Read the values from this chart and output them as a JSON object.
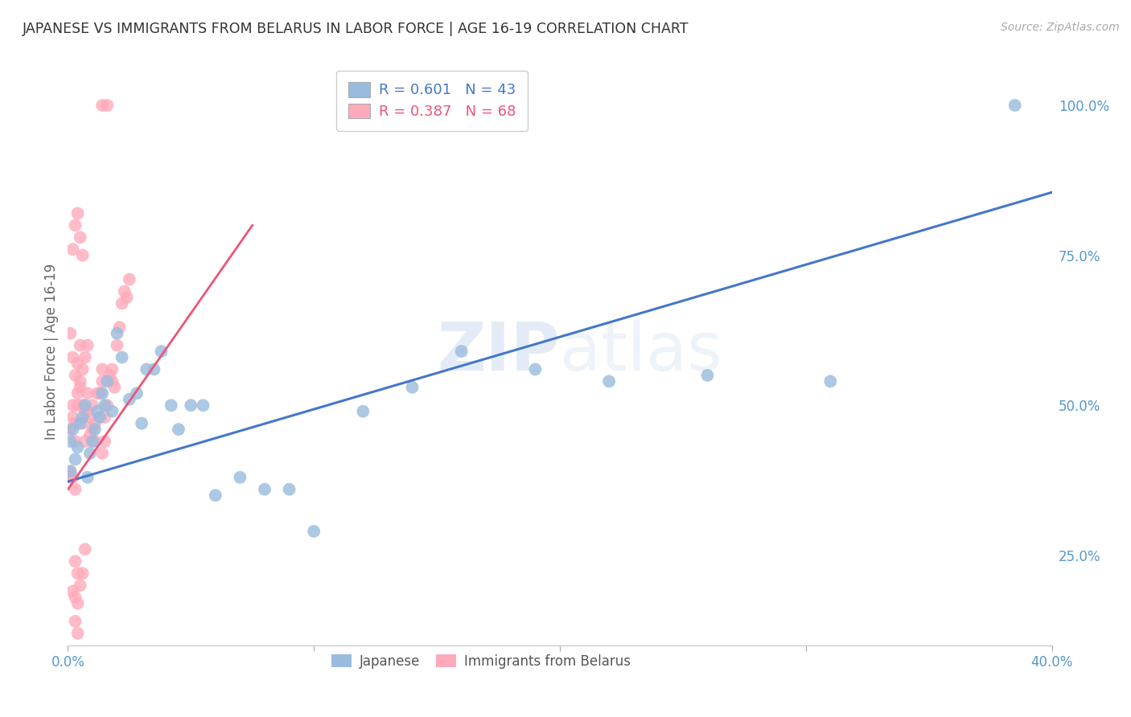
{
  "title": "JAPANESE VS IMMIGRANTS FROM BELARUS IN LABOR FORCE | AGE 16-19 CORRELATION CHART",
  "source": "Source: ZipAtlas.com",
  "ylabel": "In Labor Force | Age 16-19",
  "xlim": [
    0.0,
    0.4
  ],
  "ylim": [
    0.1,
    1.08
  ],
  "xtick_vals": [
    0.0,
    0.1,
    0.2,
    0.3,
    0.4
  ],
  "xtick_labels": [
    "0.0%",
    "",
    "",
    "",
    "40.0%"
  ],
  "ytick_vals": [
    0.25,
    0.5,
    0.75,
    1.0
  ],
  "ytick_labels": [
    "25.0%",
    "50.0%",
    "75.0%",
    "100.0%"
  ],
  "watermark_zip": "ZIP",
  "watermark_atlas": "atlas",
  "legend_blue_r": "R = 0.601",
  "legend_blue_n": "N = 43",
  "legend_pink_r": "R = 0.387",
  "legend_pink_n": "N = 68",
  "blue_color": "#99BBDD",
  "pink_color": "#FFAABB",
  "blue_line_color": "#4477CC",
  "pink_line_color": "#EE5577",
  "tick_color": "#5599CC",
  "grid_color": "#CCCCCC",
  "japanese_x": [
    0.001,
    0.001,
    0.002,
    0.003,
    0.004,
    0.005,
    0.006,
    0.007,
    0.008,
    0.009,
    0.01,
    0.011,
    0.012,
    0.013,
    0.014,
    0.015,
    0.016,
    0.018,
    0.02,
    0.022,
    0.025,
    0.028,
    0.03,
    0.032,
    0.035,
    0.038,
    0.042,
    0.045,
    0.05,
    0.055,
    0.06,
    0.07,
    0.08,
    0.09,
    0.1,
    0.12,
    0.14,
    0.16,
    0.19,
    0.22,
    0.26,
    0.31,
    0.385
  ],
  "japanese_y": [
    0.39,
    0.44,
    0.46,
    0.41,
    0.43,
    0.47,
    0.48,
    0.5,
    0.38,
    0.42,
    0.44,
    0.46,
    0.49,
    0.48,
    0.52,
    0.5,
    0.54,
    0.49,
    0.62,
    0.58,
    0.51,
    0.52,
    0.47,
    0.56,
    0.56,
    0.59,
    0.5,
    0.46,
    0.5,
    0.5,
    0.35,
    0.38,
    0.36,
    0.36,
    0.29,
    0.49,
    0.53,
    0.59,
    0.56,
    0.54,
    0.55,
    0.54,
    1.0
  ],
  "belarus_x": [
    0.001,
    0.001,
    0.002,
    0.002,
    0.003,
    0.003,
    0.004,
    0.004,
    0.005,
    0.005,
    0.006,
    0.006,
    0.007,
    0.007,
    0.008,
    0.008,
    0.009,
    0.009,
    0.01,
    0.01,
    0.011,
    0.011,
    0.012,
    0.013,
    0.014,
    0.014,
    0.015,
    0.016,
    0.017,
    0.018,
    0.018,
    0.019,
    0.02,
    0.021,
    0.022,
    0.023,
    0.024,
    0.025,
    0.014,
    0.015,
    0.003,
    0.004,
    0.005,
    0.006,
    0.007,
    0.002,
    0.003,
    0.004,
    0.002,
    0.003,
    0.004,
    0.005,
    0.006,
    0.001,
    0.002,
    0.003,
    0.004,
    0.005,
    0.006,
    0.007,
    0.008,
    0.003,
    0.004,
    0.003,
    0.002,
    0.001,
    0.014,
    0.016
  ],
  "belarus_y": [
    0.39,
    0.46,
    0.48,
    0.5,
    0.44,
    0.47,
    0.52,
    0.5,
    0.54,
    0.53,
    0.5,
    0.47,
    0.49,
    0.44,
    0.52,
    0.49,
    0.48,
    0.45,
    0.5,
    0.46,
    0.44,
    0.47,
    0.52,
    0.52,
    0.54,
    0.56,
    0.48,
    0.5,
    0.55,
    0.54,
    0.56,
    0.53,
    0.6,
    0.63,
    0.67,
    0.69,
    0.68,
    0.71,
    0.42,
    0.44,
    0.24,
    0.22,
    0.2,
    0.22,
    0.26,
    0.19,
    0.18,
    0.17,
    0.76,
    0.8,
    0.82,
    0.78,
    0.75,
    0.62,
    0.58,
    0.55,
    0.57,
    0.6,
    0.56,
    0.58,
    0.6,
    0.14,
    0.12,
    0.36,
    0.38,
    0.38,
    1.0,
    1.0
  ],
  "blue_line_x": [
    0.0,
    0.4
  ],
  "blue_line_y": [
    0.373,
    0.855
  ],
  "pink_line_x": [
    0.0,
    0.075
  ],
  "pink_line_y": [
    0.36,
    0.8
  ]
}
